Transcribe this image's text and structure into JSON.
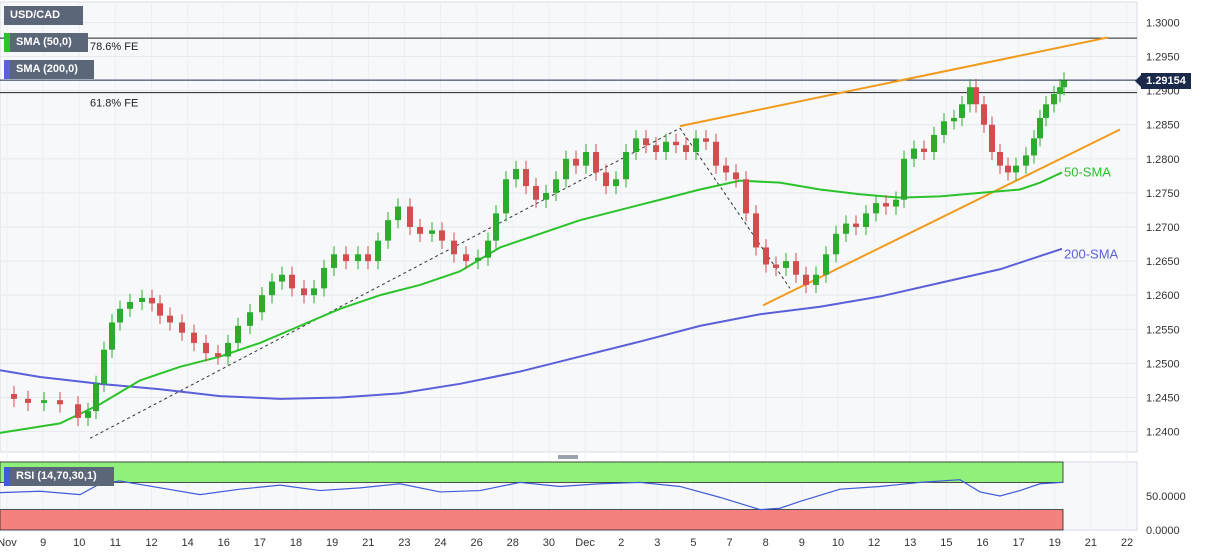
{
  "legend": {
    "symbol": "USD/CAD",
    "sma50": "SMA (50,0)",
    "sma200": "SMA (200,0)",
    "rsi": "RSI (14,70,30,1)",
    "last_price": "1.29154"
  },
  "annotations": {
    "fe786": "78.6% FE",
    "fe618": "61.8% FE",
    "sma50_label": "50-SMA",
    "sma200_label": "200-SMA"
  },
  "colors": {
    "up": "#2cab2c",
    "down": "#d24d4d",
    "sma50": "#2bc22b",
    "sma200": "#5b5fd8",
    "channel": "#f29a1c",
    "rsi_line": "#3f5bd8",
    "overbought": "#8ff07a",
    "oversold": "#f58080"
  },
  "chart_data": [
    {
      "type": "candlestick",
      "title": "USD/CAD",
      "x_ticks": [
        "Nov",
        "9",
        "10",
        "11",
        "12",
        "14",
        "16",
        "17",
        "18",
        "19",
        "21",
        "23",
        "24",
        "26",
        "28",
        "30",
        "Dec",
        "2",
        "3",
        "5",
        "7",
        "8",
        "9",
        "10",
        "12",
        "13",
        "15",
        "16",
        "17",
        "19",
        "21",
        "22"
      ],
      "y_ticks": [
        "1.2400",
        "1.2450",
        "1.2500",
        "1.2550",
        "1.2600",
        "1.2650",
        "1.2700",
        "1.2750",
        "1.2800",
        "1.2850",
        "1.2900",
        "1.2950",
        "1.3000"
      ],
      "ylim": [
        1.237,
        1.303
      ],
      "last_price": 1.29154,
      "levels": [
        {
          "name": "78.6% FE",
          "value": 1.2977
        },
        {
          "name": "61.8% FE",
          "value": 1.2897
        }
      ],
      "close_path": [
        [
          0,
          1.2455
        ],
        [
          14,
          1.2448
        ],
        [
          28,
          1.2442
        ],
        [
          44,
          1.2446
        ],
        [
          60,
          1.244
        ],
        [
          78,
          1.242
        ],
        [
          88,
          1.243
        ],
        [
          96,
          1.247
        ],
        [
          104,
          1.252
        ],
        [
          112,
          1.256
        ],
        [
          120,
          1.258
        ],
        [
          130,
          1.259
        ],
        [
          142,
          1.2596
        ],
        [
          152,
          1.2588
        ],
        [
          160,
          1.257
        ],
        [
          170,
          1.256
        ],
        [
          182,
          1.2545
        ],
        [
          194,
          1.253
        ],
        [
          206,
          1.2515
        ],
        [
          218,
          1.251
        ],
        [
          228,
          1.253
        ],
        [
          238,
          1.2555
        ],
        [
          250,
          1.2575
        ],
        [
          262,
          1.26
        ],
        [
          272,
          1.262
        ],
        [
          282,
          1.263
        ],
        [
          292,
          1.261
        ],
        [
          304,
          1.26
        ],
        [
          314,
          1.261
        ],
        [
          324,
          1.264
        ],
        [
          334,
          1.266
        ],
        [
          346,
          1.265
        ],
        [
          358,
          1.266
        ],
        [
          368,
          1.265
        ],
        [
          378,
          1.268
        ],
        [
          388,
          1.271
        ],
        [
          398,
          1.273
        ],
        [
          410,
          1.27
        ],
        [
          420,
          1.269
        ],
        [
          432,
          1.2695
        ],
        [
          442,
          1.268
        ],
        [
          454,
          1.266
        ],
        [
          466,
          1.265
        ],
        [
          478,
          1.2655
        ],
        [
          488,
          1.268
        ],
        [
          496,
          1.272
        ],
        [
          506,
          1.277
        ],
        [
          516,
          1.2785
        ],
        [
          526,
          1.276
        ],
        [
          536,
          1.274
        ],
        [
          546,
          1.275
        ],
        [
          556,
          1.277
        ],
        [
          566,
          1.28
        ],
        [
          576,
          1.279
        ],
        [
          586,
          1.281
        ],
        [
          596,
          1.278
        ],
        [
          606,
          1.276
        ],
        [
          616,
          1.277
        ],
        [
          626,
          1.281
        ],
        [
          636,
          1.283
        ],
        [
          646,
          1.282
        ],
        [
          656,
          1.281
        ],
        [
          666,
          1.2825
        ],
        [
          676,
          1.282
        ],
        [
          686,
          1.281
        ],
        [
          696,
          1.283
        ],
        [
          706,
          1.2825
        ],
        [
          716,
          1.279
        ],
        [
          726,
          1.278
        ],
        [
          736,
          1.277
        ],
        [
          746,
          1.272
        ],
        [
          756,
          1.267
        ],
        [
          766,
          1.2645
        ],
        [
          776,
          1.264
        ],
        [
          786,
          1.265
        ],
        [
          796,
          1.263
        ],
        [
          806,
          1.2615
        ],
        [
          816,
          1.263
        ],
        [
          826,
          1.266
        ],
        [
          836,
          1.269
        ],
        [
          846,
          1.2705
        ],
        [
          856,
          1.27
        ],
        [
          866,
          1.272
        ],
        [
          876,
          1.2735
        ],
        [
          886,
          1.273
        ],
        [
          896,
          1.274
        ],
        [
          904,
          1.28
        ],
        [
          914,
          1.2815
        ],
        [
          924,
          1.281
        ],
        [
          934,
          1.2835
        ],
        [
          944,
          1.2855
        ],
        [
          954,
          1.286
        ],
        [
          962,
          1.288
        ],
        [
          970,
          1.2905
        ],
        [
          976,
          1.288
        ],
        [
          984,
          1.285
        ],
        [
          992,
          1.281
        ],
        [
          1000,
          1.279
        ],
        [
          1008,
          1.278
        ],
        [
          1016,
          1.279
        ],
        [
          1026,
          1.2805
        ],
        [
          1034,
          1.283
        ],
        [
          1040,
          1.286
        ],
        [
          1046,
          1.288
        ],
        [
          1054,
          1.2895
        ],
        [
          1060,
          1.2905
        ],
        [
          1064,
          1.2915
        ]
      ],
      "sma50": [
        [
          0,
          1.2398
        ],
        [
          60,
          1.2412
        ],
        [
          100,
          1.244
        ],
        [
          140,
          1.2475
        ],
        [
          180,
          1.2495
        ],
        [
          220,
          1.251
        ],
        [
          260,
          1.253
        ],
        [
          300,
          1.2555
        ],
        [
          340,
          1.258
        ],
        [
          380,
          1.26
        ],
        [
          420,
          1.2615
        ],
        [
          460,
          1.2635
        ],
        [
          500,
          1.267
        ],
        [
          540,
          1.269
        ],
        [
          580,
          1.271
        ],
        [
          620,
          1.2725
        ],
        [
          660,
          1.274
        ],
        [
          700,
          1.2755
        ],
        [
          740,
          1.2768
        ],
        [
          780,
          1.2765
        ],
        [
          820,
          1.2755
        ],
        [
          860,
          1.2748
        ],
        [
          900,
          1.2743
        ],
        [
          940,
          1.2745
        ],
        [
          980,
          1.275
        ],
        [
          1020,
          1.2755
        ],
        [
          1040,
          1.2765
        ],
        [
          1062,
          1.278
        ]
      ],
      "sma200": [
        [
          0,
          1.249
        ],
        [
          40,
          1.248
        ],
        [
          100,
          1.247
        ],
        [
          160,
          1.2462
        ],
        [
          220,
          1.2452
        ],
        [
          280,
          1.2448
        ],
        [
          340,
          1.245
        ],
        [
          400,
          1.2456
        ],
        [
          460,
          1.247
        ],
        [
          520,
          1.2488
        ],
        [
          580,
          1.251
        ],
        [
          640,
          1.2532
        ],
        [
          700,
          1.2555
        ],
        [
          760,
          1.2572
        ],
        [
          820,
          1.2583
        ],
        [
          880,
          1.2598
        ],
        [
          940,
          1.2618
        ],
        [
          1000,
          1.2638
        ],
        [
          1062,
          1.2668
        ]
      ],
      "rsi": {
        "ylim": [
          0,
          100
        ],
        "y_ticks": [
          "50.0000",
          "0.0000"
        ],
        "overbought": 70,
        "oversold": 30,
        "line": [
          [
            0,
            55
          ],
          [
            40,
            57
          ],
          [
            80,
            52
          ],
          [
            100,
            68
          ],
          [
            120,
            72
          ],
          [
            160,
            62
          ],
          [
            200,
            52
          ],
          [
            240,
            60
          ],
          [
            280,
            66
          ],
          [
            320,
            58
          ],
          [
            360,
            62
          ],
          [
            400,
            68
          ],
          [
            440,
            56
          ],
          [
            480,
            58
          ],
          [
            520,
            70
          ],
          [
            560,
            64
          ],
          [
            600,
            68
          ],
          [
            640,
            70
          ],
          [
            680,
            64
          ],
          [
            720,
            48
          ],
          [
            760,
            30
          ],
          [
            780,
            32
          ],
          [
            800,
            42
          ],
          [
            840,
            60
          ],
          [
            880,
            64
          ],
          [
            920,
            70
          ],
          [
            960,
            74
          ],
          [
            980,
            56
          ],
          [
            1000,
            50
          ],
          [
            1020,
            58
          ],
          [
            1040,
            68
          ],
          [
            1062,
            70
          ]
        ]
      }
    }
  ]
}
